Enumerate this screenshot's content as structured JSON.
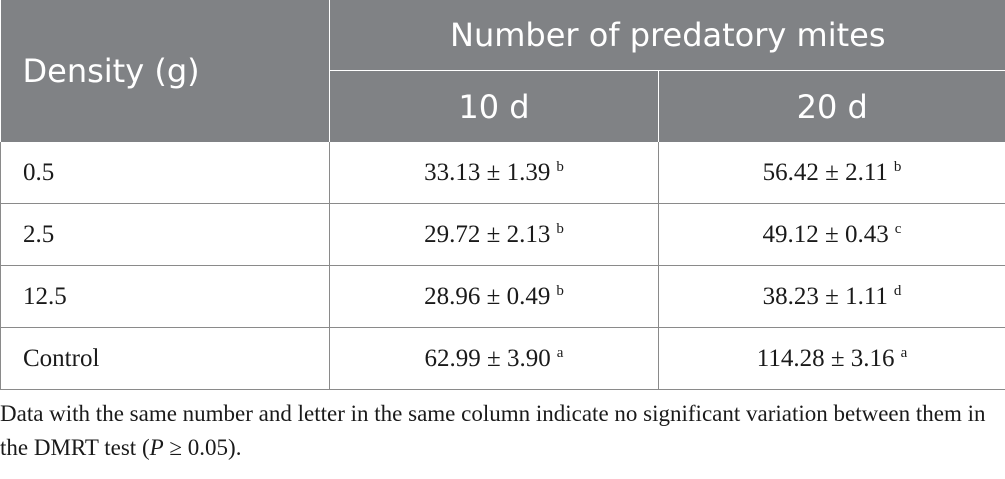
{
  "table": {
    "header": {
      "density_label": "Density (g)",
      "group_label": "Number of predatory mites",
      "sub_labels": [
        "10 d",
        "20 d"
      ]
    },
    "rows": [
      {
        "density": "0.5",
        "d10": "33.13 ± 1.39",
        "d10_sup": "b",
        "d20": "56.42 ± 2.11",
        "d20_sup": "b"
      },
      {
        "density": "2.5",
        "d10": "29.72 ± 2.13",
        "d10_sup": "b",
        "d20": "49.12 ± 0.43",
        "d20_sup": "c"
      },
      {
        "density": "12.5",
        "d10": "28.96 ± 0.49",
        "d10_sup": "b",
        "d20": "38.23 ± 1.11",
        "d20_sup": "d"
      },
      {
        "density": "Control",
        "d10": "62.99 ± 3.90",
        "d10_sup": "a",
        "d20": "114.28 ± 3.16",
        "d20_sup": "a"
      }
    ]
  },
  "footnote": {
    "text_before": "Data with the same number and letter in the same column indicate no significant variation between them in the DMRT test (",
    "p_symbol": "P",
    "text_after": " ≥ 0.05)."
  }
}
